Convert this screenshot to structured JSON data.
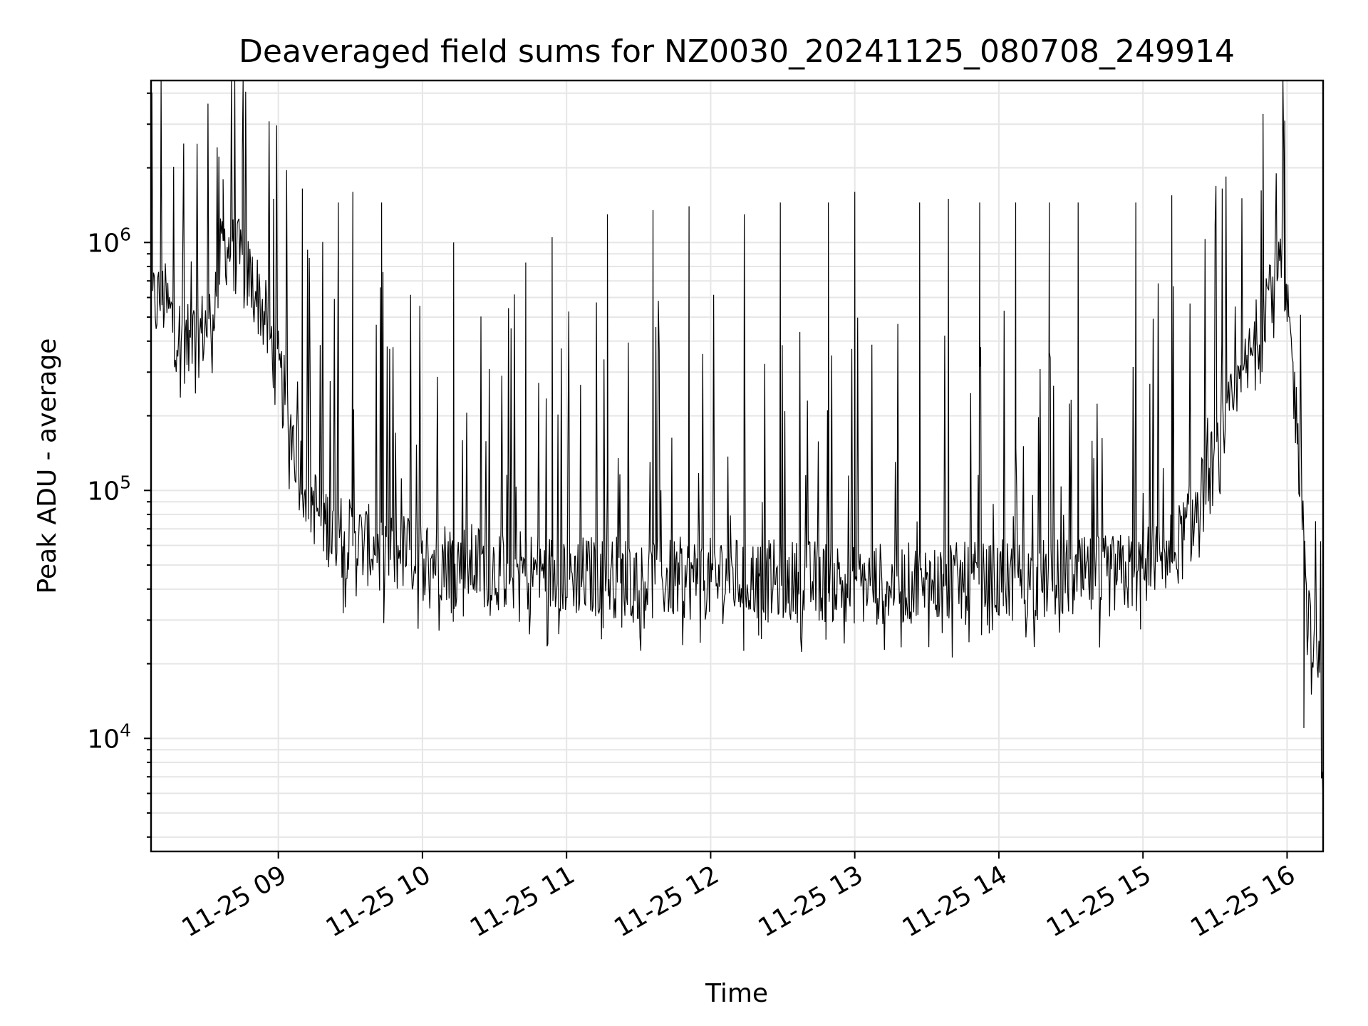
{
  "chart_data": {
    "type": "line",
    "title": "Deaveraged field sums for NZ0030_20241125_080708_249914",
    "xlabel": "Time",
    "ylabel": "Peak ADU - average",
    "yscale": "log",
    "ylim": [
      3500,
      4500000
    ],
    "xlim": [
      "2024-11-25 08:07",
      "2024-11-25 16:15"
    ],
    "grid": true,
    "x_ticks": [
      {
        "value": "2024-11-25 09:00",
        "label": "11-25 09"
      },
      {
        "value": "2024-11-25 10:00",
        "label": "11-25 10"
      },
      {
        "value": "2024-11-25 11:00",
        "label": "11-25 11"
      },
      {
        "value": "2024-11-25 12:00",
        "label": "11-25 12"
      },
      {
        "value": "2024-11-25 13:00",
        "label": "11-25 13"
      },
      {
        "value": "2024-11-25 14:00",
        "label": "11-25 14"
      },
      {
        "value": "2024-11-25 15:00",
        "label": "11-25 15"
      },
      {
        "value": "2024-11-25 16:00",
        "label": "11-25 16"
      }
    ],
    "y_ticks": [
      {
        "value": 10000,
        "base": "10",
        "exp": "4"
      },
      {
        "value": 100000,
        "base": "10",
        "exp": "5"
      },
      {
        "value": 1000000,
        "base": "10",
        "exp": "6"
      }
    ],
    "series": [
      {
        "color": "#000000",
        "x": [
          "2024-11-25 08:07",
          "2024-11-25 08:12",
          "2024-11-25 08:17",
          "2024-11-25 08:22",
          "2024-11-25 08:27",
          "2024-11-25 08:32",
          "2024-11-25 08:37",
          "2024-11-25 08:42",
          "2024-11-25 08:47",
          "2024-11-25 08:52",
          "2024-11-25 08:57",
          "2024-11-25 09:02",
          "2024-11-25 09:07",
          "2024-11-25 09:12",
          "2024-11-25 09:17",
          "2024-11-25 09:22",
          "2024-11-25 09:27",
          "2024-11-25 09:32",
          "2024-11-25 09:37",
          "2024-11-25 09:42",
          "2024-11-25 09:47",
          "2024-11-25 09:52",
          "2024-11-25 09:57",
          "2024-11-25 10:02",
          "2024-11-25 10:07",
          "2024-11-25 10:12",
          "2024-11-25 10:17",
          "2024-11-25 10:22",
          "2024-11-25 10:27",
          "2024-11-25 10:32",
          "2024-11-25 10:37",
          "2024-11-25 10:42",
          "2024-11-25 10:47",
          "2024-11-25 10:52",
          "2024-11-25 10:57",
          "2024-11-25 11:02",
          "2024-11-25 11:07",
          "2024-11-25 11:12",
          "2024-11-25 11:17",
          "2024-11-25 11:22",
          "2024-11-25 11:27",
          "2024-11-25 11:32",
          "2024-11-25 11:37",
          "2024-11-25 11:42",
          "2024-11-25 11:47",
          "2024-11-25 11:52",
          "2024-11-25 11:57",
          "2024-11-25 12:02",
          "2024-11-25 12:07",
          "2024-11-25 12:12",
          "2024-11-25 12:17",
          "2024-11-25 12:22",
          "2024-11-25 12:27",
          "2024-11-25 12:32",
          "2024-11-25 12:37",
          "2024-11-25 12:42",
          "2024-11-25 12:47",
          "2024-11-25 12:52",
          "2024-11-25 12:57",
          "2024-11-25 13:02",
          "2024-11-25 13:07",
          "2024-11-25 13:12",
          "2024-11-25 13:17",
          "2024-11-25 13:22",
          "2024-11-25 13:27",
          "2024-11-25 13:32",
          "2024-11-25 13:37",
          "2024-11-25 13:42",
          "2024-11-25 13:47",
          "2024-11-25 13:52",
          "2024-11-25 13:57",
          "2024-11-25 14:02",
          "2024-11-25 14:07",
          "2024-11-25 14:12",
          "2024-11-25 14:17",
          "2024-11-25 14:22",
          "2024-11-25 14:27",
          "2024-11-25 14:32",
          "2024-11-25 14:37",
          "2024-11-25 14:42",
          "2024-11-25 14:47",
          "2024-11-25 14:52",
          "2024-11-25 14:57",
          "2024-11-25 15:02",
          "2024-11-25 15:07",
          "2024-11-25 15:12",
          "2024-11-25 15:17",
          "2024-11-25 15:22",
          "2024-11-25 15:27",
          "2024-11-25 15:32",
          "2024-11-25 15:37",
          "2024-11-25 15:42",
          "2024-11-25 15:47",
          "2024-11-25 15:52",
          "2024-11-25 15:57",
          "2024-11-25 16:02",
          "2024-11-25 16:07",
          "2024-11-25 16:10",
          "2024-11-25 16:13",
          "2024-11-25 16:15"
        ],
        "baseline": [
          550000,
          600000,
          450000,
          380000,
          420000,
          500000,
          1000000,
          900000,
          750000,
          600000,
          400000,
          250000,
          150000,
          100000,
          80000,
          70000,
          65000,
          62000,
          60000,
          58000,
          57000,
          56000,
          55000,
          54000,
          53000,
          52000,
          51000,
          50000,
          49000,
          48000,
          48000,
          47000,
          47000,
          46000,
          46000,
          46000,
          45000,
          45000,
          45000,
          45000,
          45000,
          44000,
          44000,
          44000,
          44000,
          44000,
          44000,
          44000,
          44000,
          44000,
          44000,
          43000,
          43000,
          43000,
          43000,
          43000,
          43000,
          43000,
          43000,
          42000,
          42000,
          42000,
          42000,
          42000,
          42000,
          42000,
          42000,
          42000,
          42000,
          42000,
          42000,
          43000,
          43000,
          43000,
          43000,
          44000,
          44000,
          44000,
          44000,
          45000,
          45000,
          46000,
          47000,
          49000,
          52000,
          56000,
          65000,
          80000,
          110000,
          150000,
          210000,
          280000,
          400000,
          650000,
          800000,
          350000,
          70000,
          22000,
          20000,
          7000
        ],
        "spikes": [
          {
            "x": "2024-11-25 08:37",
            "y": 1800000
          },
          {
            "x": "2024-11-25 08:45",
            "y": 2300000
          },
          {
            "x": "2024-11-25 08:58",
            "y": 1500000
          },
          {
            "x": "2024-11-25 09:10",
            "y": 1650000
          },
          {
            "x": "2024-11-25 09:25",
            "y": 1450000
          },
          {
            "x": "2024-11-25 09:31",
            "y": 1600000
          },
          {
            "x": "2024-11-25 09:43",
            "y": 1450000
          },
          {
            "x": "2024-11-25 10:13",
            "y": 1000000
          },
          {
            "x": "2024-11-25 10:43",
            "y": 830000
          },
          {
            "x": "2024-11-25 10:54",
            "y": 1050000
          },
          {
            "x": "2024-11-25 11:17",
            "y": 1300000
          },
          {
            "x": "2024-11-25 11:36",
            "y": 1350000
          },
          {
            "x": "2024-11-25 11:51",
            "y": 1400000
          },
          {
            "x": "2024-11-25 12:14",
            "y": 1300000
          },
          {
            "x": "2024-11-25 12:29",
            "y": 1450000
          },
          {
            "x": "2024-11-25 12:49",
            "y": 1450000
          },
          {
            "x": "2024-11-25 13:00",
            "y": 1600000
          },
          {
            "x": "2024-11-25 13:27",
            "y": 1450000
          },
          {
            "x": "2024-11-25 13:39",
            "y": 1500000
          },
          {
            "x": "2024-11-25 13:52",
            "y": 1450000
          },
          {
            "x": "2024-11-25 14:07",
            "y": 1450000
          },
          {
            "x": "2024-11-25 14:21",
            "y": 1450000
          },
          {
            "x": "2024-11-25 14:33",
            "y": 1450000
          },
          {
            "x": "2024-11-25 14:57",
            "y": 1450000
          },
          {
            "x": "2024-11-25 15:12",
            "y": 1550000
          },
          {
            "x": "2024-11-25 15:33",
            "y": 1650000
          },
          {
            "x": "2024-11-25 15:50",
            "y": 3300000
          },
          {
            "x": "2024-11-25 15:59",
            "y": 3100000
          }
        ],
        "dips": [
          {
            "x": "2024-11-25 09:27",
            "y": 32000
          },
          {
            "x": "2024-11-25 10:12",
            "y": 32000
          },
          {
            "x": "2024-11-25 11:23",
            "y": 28000
          },
          {
            "x": "2024-11-25 12:20",
            "y": 26000
          },
          {
            "x": "2024-11-25 12:48",
            "y": 25000
          },
          {
            "x": "2024-11-25 13:56",
            "y": 26500
          },
          {
            "x": "2024-11-25 14:59",
            "y": 27500
          },
          {
            "x": "2024-11-25 16:07",
            "y": 11000
          }
        ]
      }
    ]
  }
}
